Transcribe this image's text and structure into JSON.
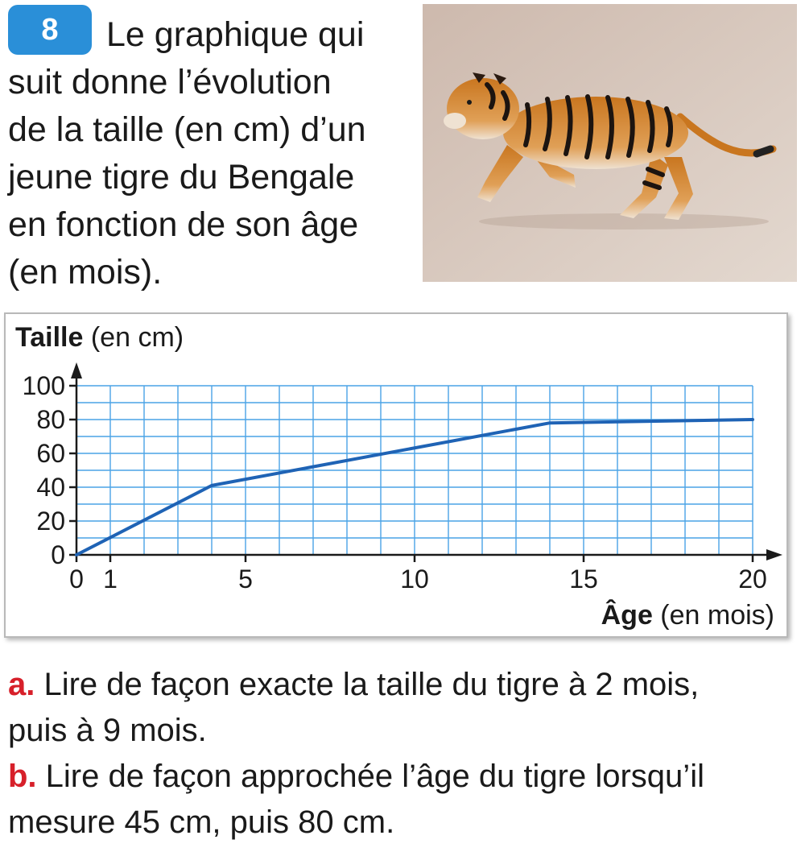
{
  "exercise": {
    "number": "8",
    "intro_lines": [
      "Le graphique qui",
      "suit donne l’évolution",
      "de la taille (en cm) d’un",
      "jeune tigre du Bengale",
      "en fonction de son âge",
      "(en mois)."
    ]
  },
  "photo": {
    "subject": "tiger-cub-running"
  },
  "chart_data": {
    "type": "line",
    "ylabel_bold": "Taille",
    "ylabel_rest": " (en cm)",
    "xlabel_bold": "Âge",
    "xlabel_rest": " (en mois)",
    "xlim": [
      0,
      20
    ],
    "ylim": [
      0,
      100
    ],
    "x_ticks": [
      "0",
      "1",
      "5",
      "10",
      "15",
      "20"
    ],
    "x_tick_values": [
      0,
      1,
      5,
      10,
      15,
      20
    ],
    "y_ticks": [
      "0",
      "20",
      "40",
      "60",
      "80",
      "100"
    ],
    "y_tick_values": [
      0,
      20,
      40,
      60,
      80,
      100
    ],
    "grid": true,
    "grid_x_step": 1,
    "grid_y_step": 10,
    "series": [
      {
        "x": [
          0,
          4,
          14,
          20
        ],
        "y": [
          0,
          41,
          78,
          80
        ]
      }
    ],
    "colors": {
      "line": "#1f63b5",
      "grid": "#4aa3e6",
      "axis": "#1a1a1a"
    }
  },
  "questions": [
    {
      "letter": "a.",
      "text": " Lire de façon exacte la taille du tigre à 2 mois,",
      "text2": "puis à 9 mois."
    },
    {
      "letter": "b.",
      "text": " Lire de façon approchée l’âge du tigre lorsqu’il",
      "text2": "mesure 45 cm, puis 80 cm."
    }
  ]
}
